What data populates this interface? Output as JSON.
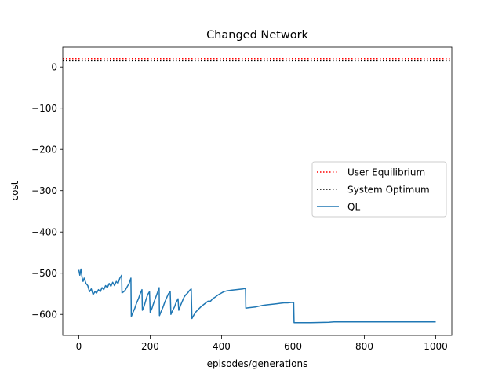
{
  "chart_data": {
    "type": "line",
    "title": "Changed Network",
    "xlabel": "episodes/generations",
    "ylabel": "cost",
    "xlim": [
      -45,
      1045
    ],
    "ylim": [
      -651,
      48
    ],
    "xticks": [
      0,
      200,
      400,
      600,
      800,
      1000
    ],
    "yticks": [
      0,
      -100,
      -200,
      -300,
      -400,
      -500,
      -600
    ],
    "grid": false,
    "legend_position": "center-right",
    "series": [
      {
        "name": "User Equilibrium",
        "style": "dotted",
        "color": "#ff0000",
        "y": 20
      },
      {
        "name": "System Optimum",
        "style": "dotted",
        "color": "#000000",
        "y": 15
      },
      {
        "name": "QL",
        "style": "solid",
        "color": "#1f77b4",
        "points": [
          [
            0,
            -492
          ],
          [
            3,
            -505
          ],
          [
            6,
            -490
          ],
          [
            9,
            -510
          ],
          [
            12,
            -520
          ],
          [
            15,
            -512
          ],
          [
            20,
            -525
          ],
          [
            25,
            -530
          ],
          [
            30,
            -545
          ],
          [
            35,
            -538
          ],
          [
            40,
            -552
          ],
          [
            45,
            -545
          ],
          [
            50,
            -548
          ],
          [
            55,
            -540
          ],
          [
            60,
            -545
          ],
          [
            65,
            -535
          ],
          [
            70,
            -540
          ],
          [
            75,
            -530
          ],
          [
            80,
            -535
          ],
          [
            85,
            -525
          ],
          [
            90,
            -532
          ],
          [
            95,
            -522
          ],
          [
            100,
            -530
          ],
          [
            105,
            -520
          ],
          [
            110,
            -525
          ],
          [
            115,
            -512
          ],
          [
            120,
            -505
          ],
          [
            121,
            -548
          ],
          [
            126,
            -545
          ],
          [
            131,
            -540
          ],
          [
            136,
            -532
          ],
          [
            141,
            -525
          ],
          [
            146,
            -512
          ],
          [
            147,
            -605
          ],
          [
            152,
            -595
          ],
          [
            157,
            -585
          ],
          [
            162,
            -572
          ],
          [
            167,
            -562
          ],
          [
            172,
            -550
          ],
          [
            177,
            -540
          ],
          [
            178,
            -590
          ],
          [
            183,
            -580
          ],
          [
            188,
            -565
          ],
          [
            193,
            -552
          ],
          [
            198,
            -545
          ],
          [
            200,
            -595
          ],
          [
            205,
            -585
          ],
          [
            210,
            -572
          ],
          [
            215,
            -560
          ],
          [
            220,
            -548
          ],
          [
            225,
            -535
          ],
          [
            226,
            -603
          ],
          [
            231,
            -592
          ],
          [
            236,
            -582
          ],
          [
            241,
            -570
          ],
          [
            246,
            -560
          ],
          [
            251,
            -550
          ],
          [
            256,
            -545
          ],
          [
            258,
            -600
          ],
          [
            263,
            -590
          ],
          [
            268,
            -582
          ],
          [
            273,
            -570
          ],
          [
            278,
            -562
          ],
          [
            280,
            -590
          ],
          [
            285,
            -578
          ],
          [
            290,
            -568
          ],
          [
            295,
            -558
          ],
          [
            300,
            -552
          ],
          [
            305,
            -548
          ],
          [
            310,
            -542
          ],
          [
            315,
            -538
          ],
          [
            317,
            -610
          ],
          [
            322,
            -602
          ],
          [
            327,
            -595
          ],
          [
            332,
            -590
          ],
          [
            338,
            -585
          ],
          [
            344,
            -580
          ],
          [
            350,
            -576
          ],
          [
            356,
            -572
          ],
          [
            362,
            -568
          ],
          [
            368,
            -568
          ],
          [
            369,
            -568
          ],
          [
            375,
            -562
          ],
          [
            382,
            -558
          ],
          [
            390,
            -553
          ],
          [
            398,
            -549
          ],
          [
            406,
            -545
          ],
          [
            414,
            -543
          ],
          [
            422,
            -542
          ],
          [
            430,
            -541
          ],
          [
            440,
            -540
          ],
          [
            450,
            -539
          ],
          [
            460,
            -538
          ],
          [
            467,
            -537
          ],
          [
            468,
            -585
          ],
          [
            475,
            -584
          ],
          [
            485,
            -583
          ],
          [
            495,
            -582
          ],
          [
            505,
            -580
          ],
          [
            515,
            -578
          ],
          [
            525,
            -577
          ],
          [
            535,
            -576
          ],
          [
            545,
            -575
          ],
          [
            555,
            -574
          ],
          [
            565,
            -573
          ],
          [
            575,
            -572
          ],
          [
            585,
            -572
          ],
          [
            595,
            -571
          ],
          [
            602,
            -571
          ],
          [
            603,
            -620
          ],
          [
            650,
            -620
          ],
          [
            700,
            -619
          ],
          [
            715,
            -618
          ],
          [
            750,
            -618
          ],
          [
            800,
            -618
          ],
          [
            850,
            -618
          ],
          [
            900,
            -618
          ],
          [
            950,
            -618
          ],
          [
            1000,
            -618
          ]
        ]
      }
    ],
    "ticks_text": {
      "x": [
        "0",
        "200",
        "400",
        "600",
        "800",
        "1000"
      ],
      "y": [
        "0",
        "−100",
        "−200",
        "−300",
        "−400",
        "−500",
        "−600"
      ]
    }
  }
}
